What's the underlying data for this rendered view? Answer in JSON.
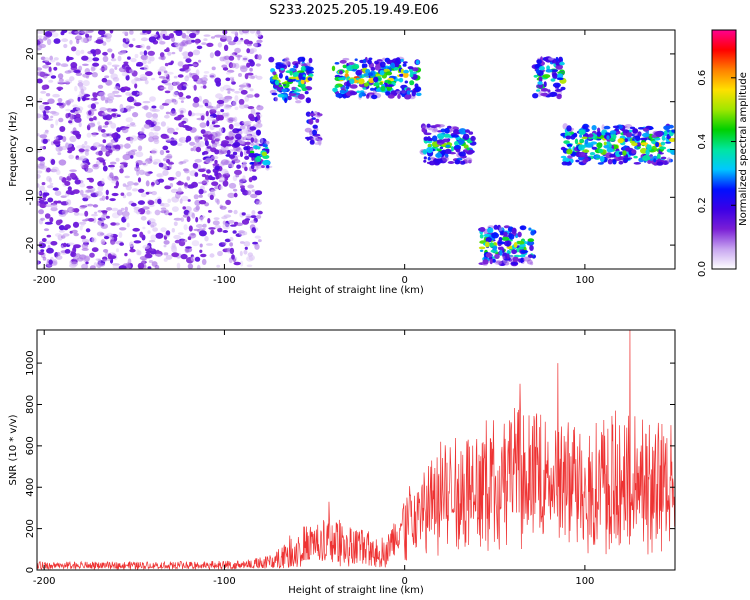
{
  "title": "S233.2025.205.19.49.E06",
  "chart_data": [
    {
      "type": "heatmap",
      "xlabel": "Height of straight line (km)",
      "ylabel": "Frequency (Hz)",
      "xlim": [
        -204,
        150
      ],
      "ylim": [
        -25,
        25
      ],
      "xticks": [
        -200,
        -100,
        0,
        100
      ],
      "xtick_labels": [
        "-200",
        "-100",
        "0",
        "100"
      ],
      "yticks": [
        -20,
        -10,
        0,
        10,
        20
      ],
      "ytick_labels": [
        "-20",
        "-10",
        "0",
        "10",
        "20"
      ],
      "colorbar": {
        "label": "Normalized spectral amplitude",
        "range": [
          0,
          0.75
        ],
        "ticks": [
          0,
          0.2,
          0.4,
          0.6
        ],
        "tick_labels": [
          "0.0",
          "0.2",
          "0.4",
          "0.6"
        ],
        "colormap": [
          "#ffffff",
          "#c8a6f0",
          "#7a1fd6",
          "#3b00e6",
          "#0010ff",
          "#00c8ff",
          "#00e6a0",
          "#00d000",
          "#a0e600",
          "#ffe000",
          "#ff8000",
          "#ff0000",
          "#ff0090"
        ]
      },
      "regions": [
        {
          "x": [
            -204,
            -80
          ],
          "f": [
            -25,
            25
          ],
          "level": 0.1,
          "kind": "noise"
        },
        {
          "x": [
            -110,
            -80
          ],
          "f": [
            -4,
            8
          ],
          "level": 0.12,
          "kind": "noise"
        },
        {
          "x": [
            -85,
            -75
          ],
          "f": [
            -4,
            2
          ],
          "level": 0.3,
          "kind": "band"
        },
        {
          "x": [
            -74,
            -52
          ],
          "f": [
            10,
            19
          ],
          "level": 0.35,
          "kind": "band"
        },
        {
          "x": [
            -54,
            -47
          ],
          "f": [
            1,
            8
          ],
          "level": 0.25,
          "kind": "band"
        },
        {
          "x": [
            -40,
            8
          ],
          "f": [
            11,
            19
          ],
          "level": 0.4,
          "kind": "band"
        },
        {
          "x": [
            10,
            38
          ],
          "f": [
            -3,
            5
          ],
          "level": 0.3,
          "kind": "band"
        },
        {
          "x": [
            42,
            72
          ],
          "f": [
            -24,
            -16
          ],
          "level": 0.35,
          "kind": "band"
        },
        {
          "x": [
            72,
            88
          ],
          "f": [
            11,
            19
          ],
          "level": 0.35,
          "kind": "band"
        },
        {
          "x": [
            88,
            150
          ],
          "f": [
            -3,
            5
          ],
          "level": 0.38,
          "kind": "band"
        }
      ]
    },
    {
      "type": "line",
      "xlabel": "Height of straight line (km)",
      "ylabel": "SNR (10 * v/v)",
      "xlim": [
        -204,
        150
      ],
      "ylim": [
        0,
        1160
      ],
      "xticks": [
        -200,
        -100,
        0,
        100
      ],
      "xtick_labels": [
        "-200",
        "-100",
        "0",
        "100"
      ],
      "yticks": [
        0,
        200,
        400,
        600,
        800,
        1000
      ],
      "ytick_labels": [
        "0",
        "200",
        "400",
        "600",
        "800",
        "1000"
      ],
      "color": "#ee3333",
      "envelope": [
        {
          "x": -204,
          "low": 10,
          "high": 40
        },
        {
          "x": -150,
          "low": 10,
          "high": 40
        },
        {
          "x": -90,
          "low": 12,
          "high": 45
        },
        {
          "x": -75,
          "low": 15,
          "high": 70
        },
        {
          "x": -60,
          "low": 40,
          "high": 200
        },
        {
          "x": -40,
          "low": 60,
          "high": 260
        },
        {
          "x": -25,
          "low": 50,
          "high": 200
        },
        {
          "x": -10,
          "low": 40,
          "high": 160
        },
        {
          "x": 0,
          "low": 120,
          "high": 380
        },
        {
          "x": 20,
          "low": 200,
          "high": 600
        },
        {
          "x": 40,
          "low": 250,
          "high": 700
        },
        {
          "x": 60,
          "low": 280,
          "high": 800
        },
        {
          "x": 80,
          "low": 250,
          "high": 740
        },
        {
          "x": 100,
          "low": 250,
          "high": 720
        },
        {
          "x": 120,
          "low": 250,
          "high": 780
        },
        {
          "x": 150,
          "low": 250,
          "high": 700
        }
      ],
      "peaks": [
        {
          "x": -42,
          "y": 330
        },
        {
          "x": 20,
          "y": 620
        },
        {
          "x": 64,
          "y": 900
        },
        {
          "x": 85,
          "y": 1000
        },
        {
          "x": 125,
          "y": 1160
        }
      ]
    }
  ]
}
